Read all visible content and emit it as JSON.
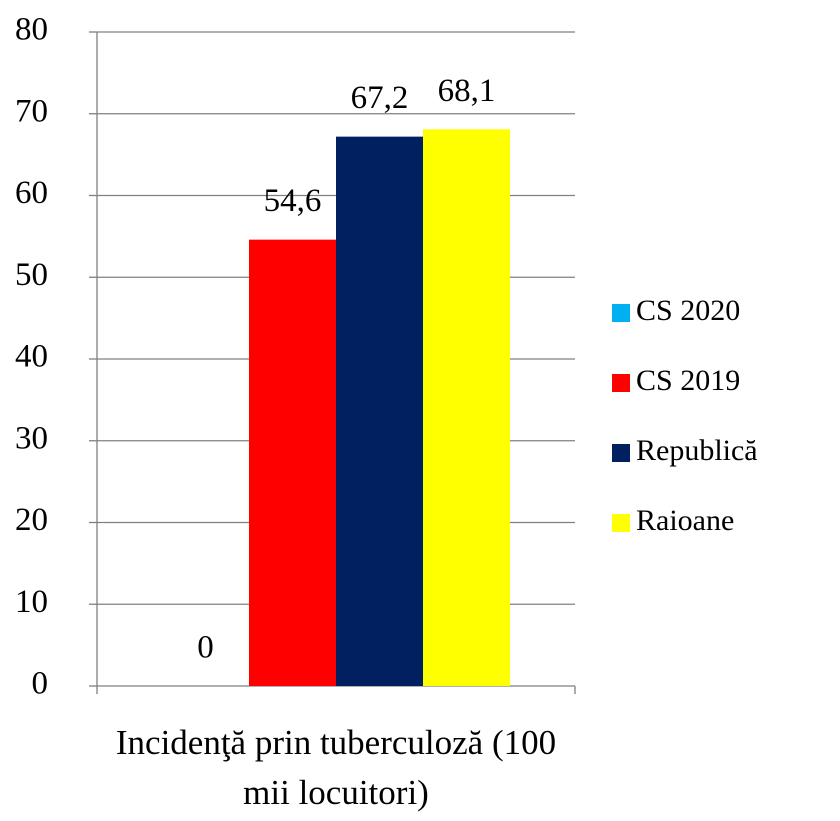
{
  "chart_data": {
    "type": "bar",
    "categories": [
      "Incidenţă prin tuberculoză (100 mii locuitori)"
    ],
    "series": [
      {
        "name": "CS 2020",
        "color": "#00b0f0",
        "values": [
          0
        ],
        "value_labels": [
          "0"
        ]
      },
      {
        "name": "CS 2019",
        "color": "#ff0000",
        "values": [
          54.6
        ],
        "value_labels": [
          "54,6"
        ]
      },
      {
        "name": "Republică",
        "color": "#002060",
        "values": [
          67.2
        ],
        "value_labels": [
          "67,2"
        ]
      },
      {
        "name": "Raioane",
        "color": "#ffff00",
        "values": [
          68.1
        ],
        "value_labels": [
          "68,1"
        ]
      }
    ],
    "ylim": [
      0,
      80
    ],
    "yticks": [
      0,
      10,
      20,
      30,
      40,
      50,
      60,
      70,
      80
    ],
    "grid": true,
    "legend": "right"
  }
}
